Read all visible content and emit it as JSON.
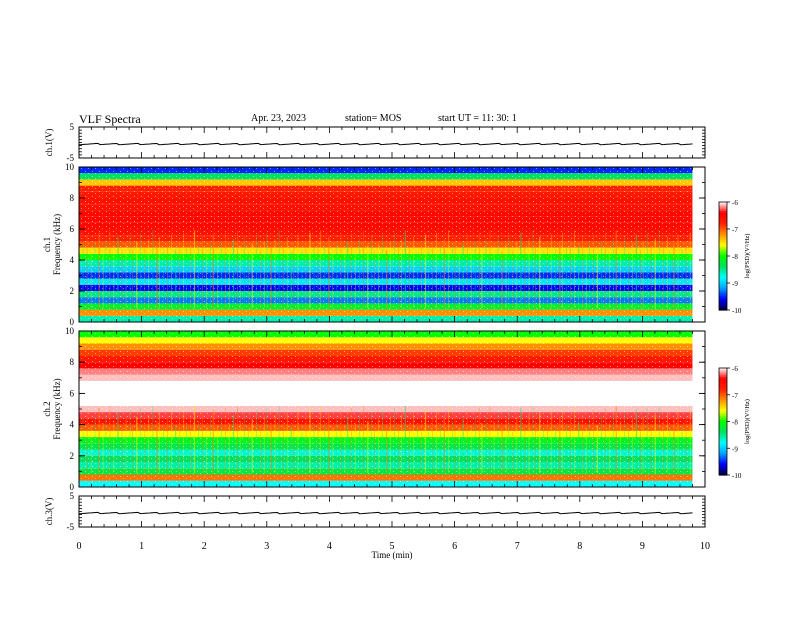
{
  "header": {
    "title": "VLF Spectra",
    "date": "Apr. 23, 2023",
    "station": "station= MOS",
    "start": "start  UT =   11: 30: 1"
  },
  "chart_data": [
    {
      "type": "line",
      "panel": "ch1-waveform",
      "ylabel": "ch.1(V)",
      "ylim": [
        -5,
        5
      ],
      "yticks": [
        5,
        -5
      ],
      "xlim": [
        0,
        10
      ],
      "series": [
        {
          "x": [
            0,
            9.8
          ],
          "values": [
            -0.5,
            -0.5
          ]
        }
      ]
    },
    {
      "type": "heatmap",
      "panel": "ch1-spectrogram",
      "ylabel": [
        "ch.1",
        "Frequency (kHz)"
      ],
      "ylim": [
        0,
        10
      ],
      "yticks": [
        0,
        2,
        4,
        6,
        8,
        10
      ],
      "xlim": [
        0,
        9.8
      ],
      "bands": [
        {
          "fmin": 0.0,
          "fmax": 0.4,
          "level": -8.6
        },
        {
          "fmin": 0.4,
          "fmax": 0.8,
          "level": -7.2
        },
        {
          "fmin": 0.8,
          "fmax": 1.2,
          "level": -8.2
        },
        {
          "fmin": 1.2,
          "fmax": 1.6,
          "level": -9.3
        },
        {
          "fmin": 1.6,
          "fmax": 2.0,
          "level": -8.5
        },
        {
          "fmin": 2.0,
          "fmax": 2.4,
          "level": -9.6
        },
        {
          "fmin": 2.4,
          "fmax": 2.8,
          "level": -8.9
        },
        {
          "fmin": 2.8,
          "fmax": 3.2,
          "level": -9.5
        },
        {
          "fmin": 3.2,
          "fmax": 3.6,
          "level": -9.0
        },
        {
          "fmin": 3.6,
          "fmax": 4.0,
          "level": -8.6
        },
        {
          "fmin": 4.0,
          "fmax": 4.4,
          "level": -8.0
        },
        {
          "fmin": 4.4,
          "fmax": 4.8,
          "level": -7.5
        },
        {
          "fmin": 4.8,
          "fmax": 5.2,
          "level": -7.0
        },
        {
          "fmin": 5.2,
          "fmax": 5.6,
          "level": -6.8
        },
        {
          "fmin": 5.6,
          "fmax": 6.0,
          "level": -6.6
        },
        {
          "fmin": 6.0,
          "fmax": 6.4,
          "level": -6.5
        },
        {
          "fmin": 6.4,
          "fmax": 6.8,
          "level": -6.5
        },
        {
          "fmin": 6.8,
          "fmax": 7.2,
          "level": -6.5
        },
        {
          "fmin": 7.2,
          "fmax": 7.6,
          "level": -6.6
        },
        {
          "fmin": 7.6,
          "fmax": 8.0,
          "level": -6.6
        },
        {
          "fmin": 8.0,
          "fmax": 8.4,
          "level": -6.7
        },
        {
          "fmin": 8.4,
          "fmax": 8.8,
          "level": -6.8
        },
        {
          "fmin": 8.8,
          "fmax": 9.2,
          "level": -7.4
        },
        {
          "fmin": 9.2,
          "fmax": 9.6,
          "level": -8.4
        },
        {
          "fmin": 9.6,
          "fmax": 10.0,
          "level": -9.5
        }
      ]
    },
    {
      "type": "heatmap",
      "panel": "ch2-spectrogram",
      "ylabel": [
        "ch.2",
        "Frequency (kHz)"
      ],
      "ylim": [
        0,
        10
      ],
      "yticks": [
        0,
        2,
        4,
        6,
        8,
        10
      ],
      "xlim": [
        0,
        9.8
      ],
      "bands": [
        {
          "fmin": 0.0,
          "fmax": 0.4,
          "level": -8.8
        },
        {
          "fmin": 0.4,
          "fmax": 0.8,
          "level": -7.1
        },
        {
          "fmin": 0.8,
          "fmax": 1.2,
          "level": -8.3
        },
        {
          "fmin": 1.2,
          "fmax": 1.6,
          "level": -8.6
        },
        {
          "fmin": 1.6,
          "fmax": 2.0,
          "level": -8.4
        },
        {
          "fmin": 2.0,
          "fmax": 2.4,
          "level": -8.7
        },
        {
          "fmin": 2.4,
          "fmax": 2.8,
          "level": -8.3
        },
        {
          "fmin": 2.8,
          "fmax": 3.2,
          "level": -8.1
        },
        {
          "fmin": 3.2,
          "fmax": 3.6,
          "level": -7.6
        },
        {
          "fmin": 3.6,
          "fmax": 4.0,
          "level": -7.0
        },
        {
          "fmin": 4.0,
          "fmax": 4.4,
          "level": -6.6
        },
        {
          "fmin": 4.4,
          "fmax": 4.8,
          "level": -6.3
        },
        {
          "fmin": 4.8,
          "fmax": 5.2,
          "level": -6.1
        },
        {
          "fmin": 5.2,
          "fmax": 5.6,
          "level": -6.0
        },
        {
          "fmin": 5.6,
          "fmax": 6.0,
          "level": -6.0
        },
        {
          "fmin": 6.0,
          "fmax": 6.4,
          "level": -6.0
        },
        {
          "fmin": 6.4,
          "fmax": 6.8,
          "level": -6.0
        },
        {
          "fmin": 6.8,
          "fmax": 7.2,
          "level": -6.1
        },
        {
          "fmin": 7.2,
          "fmax": 7.6,
          "level": -6.2
        },
        {
          "fmin": 7.6,
          "fmax": 8.0,
          "level": -6.4
        },
        {
          "fmin": 8.0,
          "fmax": 8.4,
          "level": -6.7
        },
        {
          "fmin": 8.4,
          "fmax": 8.8,
          "level": -6.9
        },
        {
          "fmin": 8.8,
          "fmax": 9.2,
          "level": -7.2
        },
        {
          "fmin": 9.2,
          "fmax": 9.6,
          "level": -7.6
        },
        {
          "fmin": 9.6,
          "fmax": 10.0,
          "level": -8.0
        }
      ]
    },
    {
      "type": "line",
      "panel": "ch3-waveform",
      "ylabel": "ch.3(V)",
      "ylim": [
        -5,
        5
      ],
      "yticks": [
        5,
        -5
      ],
      "xlim": [
        0,
        10
      ],
      "series": [
        {
          "x": [
            0,
            9.8
          ],
          "values": [
            -0.5,
            -0.5
          ]
        }
      ]
    }
  ],
  "x_axis": {
    "label": "Time  (min)",
    "range": [
      0,
      10
    ],
    "ticks": [
      "0",
      "1",
      "2",
      "3",
      "4",
      "5",
      "6",
      "7",
      "8",
      "9",
      "10"
    ]
  },
  "colorbar": {
    "label": "log(PSD)(V²/Hz)",
    "range": [
      -10,
      -6
    ],
    "ticks": [
      "-6",
      "-7",
      "-8",
      "-9",
      "-10"
    ],
    "colors": [
      "#00003a",
      "#0000ff",
      "#00a0ff",
      "#00ffff",
      "#00e060",
      "#00ff00",
      "#ffff00",
      "#ff9000",
      "#ff2000",
      "#ff0000",
      "#ffffff"
    ]
  }
}
